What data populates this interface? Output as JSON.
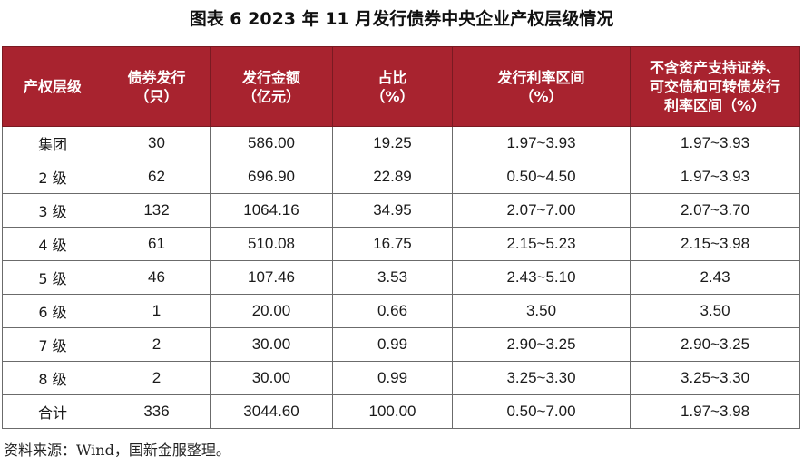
{
  "title": "图表 6  2023 年 11 月发行债券中央企业产权层级情况",
  "table": {
    "headers": [
      "产权层级",
      "债券发行\n（只）",
      "发行金额\n（亿元）",
      "占比\n（%）",
      "发行利率区间\n（%）",
      "不含资产支持证券、\n可交债和可转债发行\n利率区间（%）"
    ],
    "rows": [
      [
        "集团",
        "30",
        "586.00",
        "19.25",
        "1.97~3.93",
        "1.97~3.93"
      ],
      [
        "2 级",
        "62",
        "696.90",
        "22.89",
        "0.50~4.50",
        "1.97~3.93"
      ],
      [
        "3 级",
        "132",
        "1064.16",
        "34.95",
        "2.07~7.00",
        "2.07~3.70"
      ],
      [
        "4 级",
        "61",
        "510.08",
        "16.75",
        "2.15~5.23",
        "2.15~3.98"
      ],
      [
        "5 级",
        "46",
        "107.46",
        "3.53",
        "2.43~5.10",
        "2.43"
      ],
      [
        "6 级",
        "1",
        "20.00",
        "0.66",
        "3.50",
        "3.50"
      ],
      [
        "7 级",
        "2",
        "30.00",
        "0.99",
        "2.90~3.25",
        "2.90~3.25"
      ],
      [
        "8 级",
        "2",
        "30.00",
        "0.99",
        "3.25~3.30",
        "3.25~3.30"
      ],
      [
        "合计",
        "336",
        "3044.60",
        "100.00",
        "0.50~7.00",
        "1.97~3.98"
      ]
    ]
  },
  "source": "资料来源：Wind，国新金服整理。",
  "colors": {
    "header_bg": "#a8232f",
    "header_text": "#ffffff",
    "border": "#6b6b6b"
  }
}
